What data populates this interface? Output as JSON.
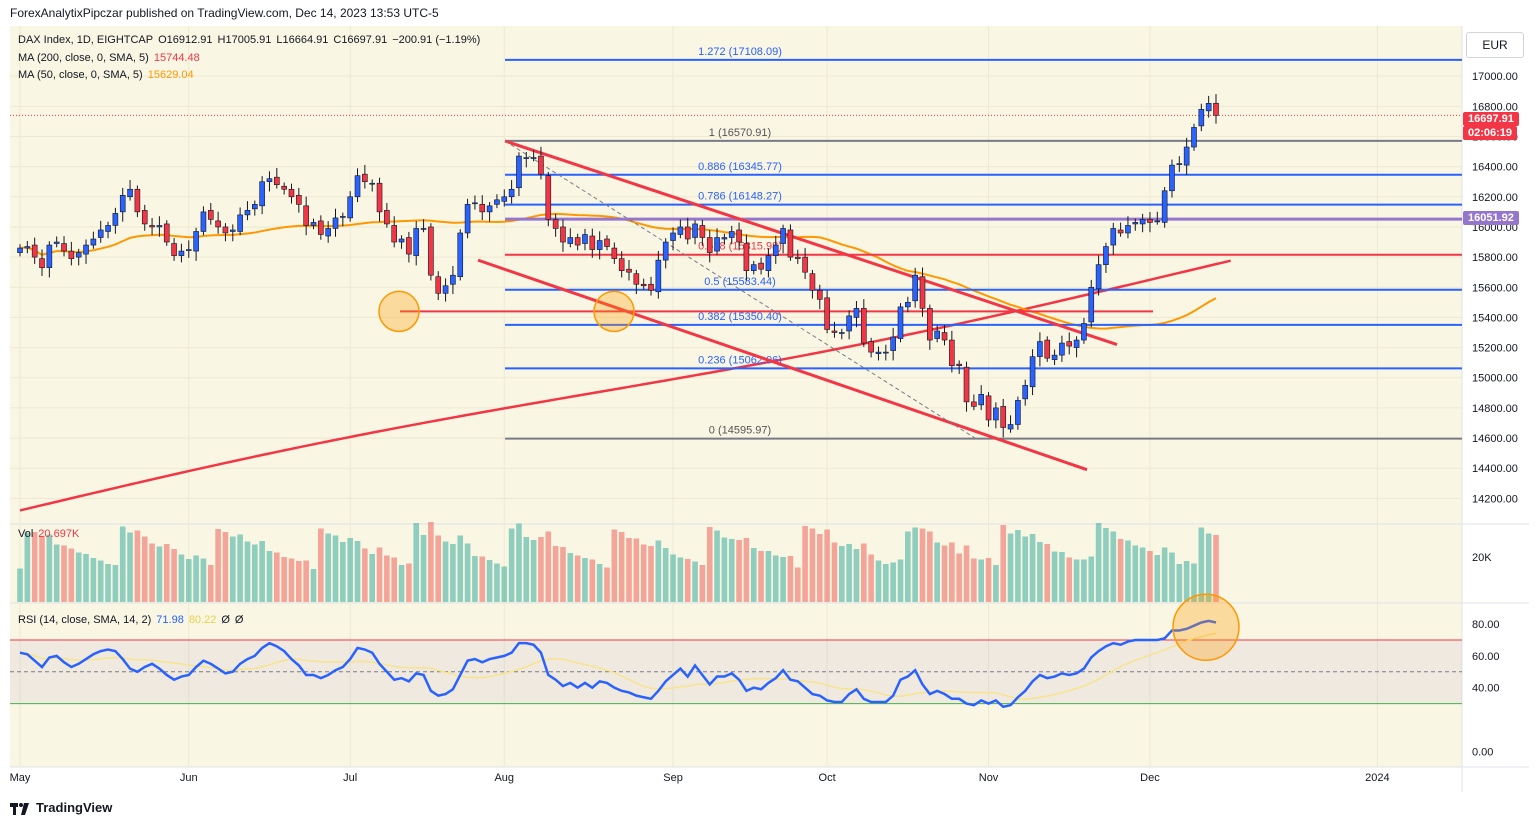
{
  "header": {
    "publisher_line": "ForexAnalytixPipczar published on TradingView.com, Dec 14, 2023 13:53 UTC-5"
  },
  "legend": {
    "symbol": "DAX Index, 1D, EIGHTCAP",
    "ohlc": {
      "o": "O16912.91",
      "h": "H17005.91",
      "l": "L16664.91",
      "c": "C16697.91",
      "chg": "−200.91 (−1.19%)"
    },
    "ma200": {
      "label": "MA (200, close, 0, SMA, 5)",
      "value": "15744.48",
      "color": "#f23645"
    },
    "ma50": {
      "label": "MA (50, close, 0, SMA, 5)",
      "value": "15629.04",
      "color": "#ff9800"
    },
    "vol": {
      "label": "Vol",
      "value": "20.697K"
    },
    "rsi": {
      "label": "RSI (14, close, SMA, 14, 2)",
      "value": "71.98",
      "sma_value": "80.22",
      "extra1": "Ø",
      "extra2": "Ø"
    }
  },
  "currency": "EUR",
  "price_tags": {
    "last": "16697.91",
    "countdown": "02:06:19",
    "level": "16051.92"
  },
  "footer": {
    "brand": "TradingView"
  },
  "chart_data": {
    "type": "candlestick",
    "symbol": "DAX Index",
    "timeframe": "1D",
    "price_axis": {
      "ylim": [
        14050,
        17200
      ],
      "ticks": [
        "17000.00",
        "16800.00",
        "16600.00",
        "16400.00",
        "16200.00",
        "16000.00",
        "15800.00",
        "15600.00",
        "15400.00",
        "15200.00",
        "15000.00",
        "14800.00",
        "14600.00",
        "14400.00",
        "14200.00"
      ]
    },
    "x_ticks": [
      "May",
      "Jun",
      "Jul",
      "Aug",
      "Sep",
      "Oct",
      "Nov",
      "Dec",
      "2024"
    ],
    "candles": {
      "start": "2023-05-01",
      "end": "2023-12-14",
      "closes": [
        15860,
        15870,
        15800,
        15730,
        15880,
        15900,
        15840,
        15790,
        15830,
        15880,
        15920,
        15980,
        16010,
        16090,
        16210,
        16250,
        16100,
        16020,
        16000,
        16010,
        15900,
        15810,
        15840,
        15850,
        15970,
        16100,
        16050,
        16000,
        15960,
        15980,
        16080,
        16110,
        16150,
        16300,
        16320,
        16280,
        16250,
        16200,
        16150,
        16010,
        16030,
        15950,
        15990,
        16060,
        16070,
        16200,
        16340,
        16300,
        16290,
        16100,
        16020,
        15900,
        15920,
        15820,
        15990,
        15990,
        15680,
        15560,
        15610,
        15680,
        15960,
        16150,
        16160,
        16100,
        16140,
        16180,
        16200,
        16250,
        16470,
        16460,
        16460,
        16350,
        16050,
        15990,
        15900,
        15930,
        15880,
        15950,
        15850,
        15910,
        15870,
        15790,
        15710,
        15700,
        15620,
        15610,
        15580,
        15780,
        15900,
        15960,
        16000,
        15920,
        16020,
        15930,
        15830,
        15930,
        15930,
        15970,
        15900,
        15710,
        15750,
        15720,
        15810,
        15880,
        15990,
        15800,
        15790,
        15700,
        15580,
        15520,
        15320,
        15300,
        15300,
        15410,
        15460,
        15230,
        15170,
        15170,
        15170,
        15270,
        15470,
        15500,
        15680,
        15460,
        15250,
        15310,
        15250,
        15080,
        15080,
        14840,
        14810,
        14890,
        14720,
        14800,
        14670,
        14690,
        14850,
        14950,
        15140,
        15240,
        15130,
        15150,
        15230,
        15210,
        15250,
        15360,
        15600,
        15750,
        15870,
        15990,
        15960,
        16010,
        16030,
        16050,
        16030,
        16040,
        16240,
        16410,
        16420,
        16530,
        16660,
        16780,
        16820,
        16740,
        16900,
        16700
      ]
    },
    "ma200": {
      "name": "MA 200",
      "value": "15744.48"
    },
    "ma50": {
      "name": "MA 50",
      "value": "15629.04"
    },
    "fibonacci": [
      {
        "ratio": "1.272",
        "price": 17108.09,
        "label": "1.272 (17108.09)"
      },
      {
        "ratio": "1",
        "price": 16570.91,
        "label": "1 (16570.91)"
      },
      {
        "ratio": "0.886",
        "price": 16345.77,
        "label": "0.886 (16345.77)"
      },
      {
        "ratio": "0.786",
        "price": 16148.27,
        "label": "0.786 (16148.27)"
      },
      {
        "ratio": "0.618",
        "price": 15815.98,
        "label": "0.618 (15815.98)"
      },
      {
        "ratio": "0.5",
        "price": 15583.44,
        "label": "0.5 (15583.44)"
      },
      {
        "ratio": "0.382",
        "price": 15350.4,
        "label": "0.382 (15350.40)"
      },
      {
        "ratio": "0.236",
        "price": 15062.06,
        "label": "0.236 (15062.06)"
      },
      {
        "ratio": "0",
        "price": 14595.97,
        "label": "0 (14595.97)"
      }
    ],
    "horizontal_levels": [
      16051.92,
      15440
    ],
    "volume": {
      "axis_tick": "20K",
      "last": "20.697K"
    },
    "rsi": {
      "ylim": [
        -8,
        92
      ],
      "ticks": [
        "80.00",
        "60.00",
        "40.00",
        "0.00"
      ],
      "overbought": 70,
      "oversold": 30,
      "mid": 50,
      "values": [
        62,
        61,
        57,
        53,
        59,
        60,
        56,
        53,
        55,
        58,
        61,
        63,
        64,
        63,
        58,
        52,
        50,
        53,
        55,
        52,
        48,
        45,
        47,
        48,
        53,
        57,
        55,
        52,
        49,
        50,
        55,
        58,
        60,
        65,
        68,
        66,
        63,
        58,
        54,
        48,
        48,
        46,
        48,
        51,
        53,
        58,
        65,
        64,
        62,
        55,
        50,
        45,
        46,
        44,
        49,
        48,
        38,
        35,
        36,
        39,
        48,
        57,
        58,
        56,
        58,
        59,
        60,
        62,
        68,
        68,
        67,
        62,
        48,
        45,
        41,
        43,
        40,
        43,
        40,
        44,
        43,
        40,
        38,
        37,
        35,
        34,
        33,
        38,
        44,
        48,
        52,
        47,
        54,
        48,
        42,
        47,
        47,
        49,
        45,
        38,
        40,
        39,
        43,
        46,
        51,
        45,
        44,
        40,
        36,
        35,
        32,
        31,
        31,
        36,
        39,
        33,
        31,
        31,
        31,
        35,
        45,
        47,
        51,
        42,
        36,
        38,
        36,
        33,
        33,
        30,
        29,
        32,
        30,
        32,
        28,
        29,
        34,
        38,
        44,
        48,
        46,
        47,
        49,
        48,
        49,
        52,
        59,
        63,
        66,
        68,
        67,
        69,
        70,
        70,
        70,
        70,
        71,
        76,
        76,
        77,
        79,
        81,
        82,
        81,
        83,
        72
      ]
    }
  }
}
